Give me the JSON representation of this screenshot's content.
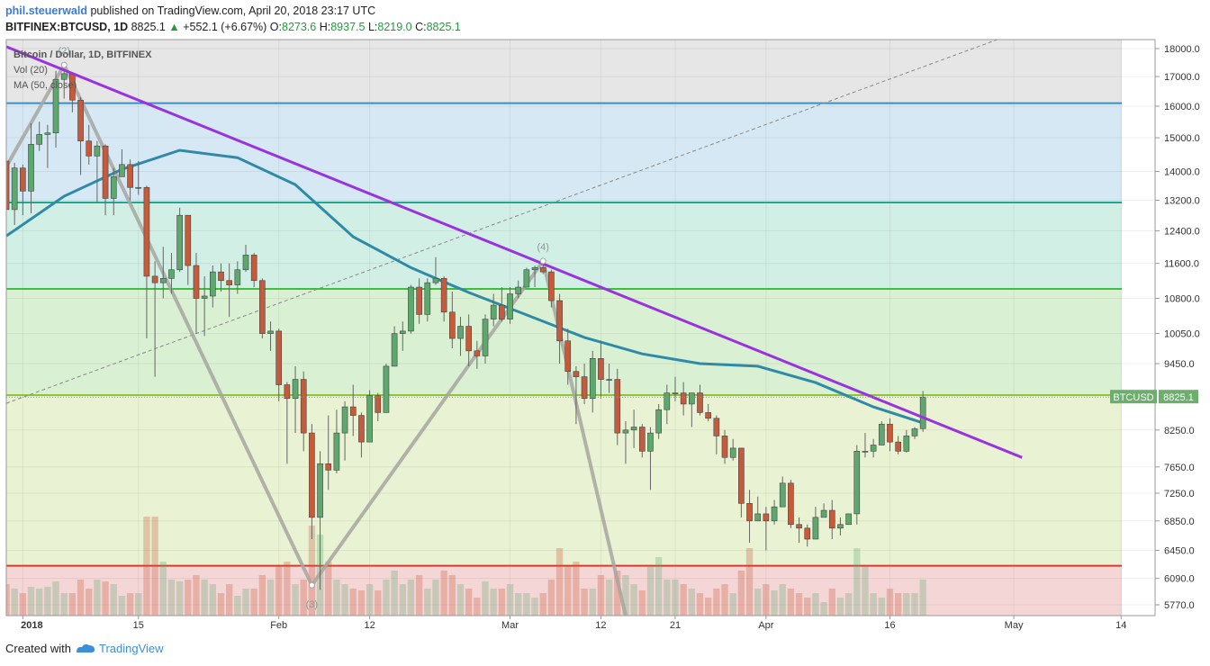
{
  "header": {
    "author": "phil.steuerwald",
    "published": "published on TradingView.com, April 20, 2018 23:17 UTC",
    "symbol": "BITFINEX:BTCUSD, 1D",
    "last": "8825.1",
    "arrow": "▲",
    "change": "+552.1 (+6.67%)",
    "ohlc": [
      {
        "label": "O:",
        "value": "8273.6"
      },
      {
        "label": "H:",
        "value": "8937.5"
      },
      {
        "label": "L:",
        "value": "8219.0"
      },
      {
        "label": "C:",
        "value": "8825.1"
      }
    ]
  },
  "footer": {
    "created": "Created with",
    "brand": "TradingView"
  },
  "chart_data": {
    "type": "candlestick",
    "legend": [
      "Bitcoin / Dollar, 1D, BITFINEX",
      "Vol (20)",
      "MA (50, close)"
    ],
    "log_scale": true,
    "up_color": "#5ea870",
    "down_color": "#c65b3c",
    "ylim": [
      5644,
      18335
    ],
    "xlim": [
      "2017-12-30",
      "2018-05-18"
    ],
    "yticks": [
      {
        "value": 18000,
        "label": "18000.0"
      },
      {
        "value": 17000,
        "label": "17000.0"
      },
      {
        "value": 16000,
        "label": "16000.0"
      },
      {
        "value": 15000,
        "label": "15000.0"
      },
      {
        "value": 14000,
        "label": "14000.0"
      },
      {
        "value": 13200,
        "label": "13200.0"
      },
      {
        "value": 12400,
        "label": "12400.0"
      },
      {
        "value": 11600,
        "label": "11600.0"
      },
      {
        "value": 10800,
        "label": "10800.0"
      },
      {
        "value": 10050,
        "label": "10050.0"
      },
      {
        "value": 9450,
        "label": "9450.0"
      },
      {
        "value": 8250,
        "label": "8250.0"
      },
      {
        "value": 7650,
        "label": "7650.0"
      },
      {
        "value": 7250,
        "label": "7250.0"
      },
      {
        "value": 6850,
        "label": "6850.0"
      },
      {
        "value": 6450,
        "label": "6450.0"
      },
      {
        "value": 6090,
        "label": "6090.0"
      },
      {
        "value": 5770,
        "label": "5770.0"
      }
    ],
    "xticks": [
      {
        "value": "2018-01-01",
        "label": "2018"
      },
      {
        "value": "2018-01-15",
        "label": "15"
      },
      {
        "value": "2018-02-01",
        "label": "Feb"
      },
      {
        "value": "2018-02-12",
        "label": "12"
      },
      {
        "value": "2018-03-01",
        "label": "Mar"
      },
      {
        "value": "2018-03-12",
        "label": "12"
      },
      {
        "value": "2018-03-21",
        "label": "21"
      },
      {
        "value": "2018-04-01",
        "label": "Apr"
      },
      {
        "value": "2018-04-16",
        "label": "16"
      },
      {
        "value": "2018-05-01",
        "label": "May"
      },
      {
        "value": "2018-05-14",
        "label": "14"
      }
    ],
    "levels": [
      {
        "value": 16100,
        "color": "#3a8fc4"
      },
      {
        "value": 13140,
        "color": "#22a88e"
      },
      {
        "value": 11010,
        "color": "#3cbf3c"
      },
      {
        "value": 8860,
        "color": "#8fc43a"
      },
      {
        "value": 6250,
        "color": "#d93a2e"
      }
    ],
    "band_colors": [
      "#e6e6e6",
      "#d5e8f3",
      "#d2efe6",
      "#d9f0d3",
      "#e9f2d2",
      "#f5d6d6"
    ],
    "price_tag": {
      "symbol": "BTCUSD",
      "value": 8825.1,
      "label": "8825.1",
      "color": "#6cae6c"
    },
    "x": [
      "2017-12-30",
      "2017-12-31",
      "2018-01-01",
      "2018-01-02",
      "2018-01-03",
      "2018-01-04",
      "2018-01-05",
      "2018-01-06",
      "2018-01-07",
      "2018-01-08",
      "2018-01-09",
      "2018-01-10",
      "2018-01-11",
      "2018-01-12",
      "2018-01-13",
      "2018-01-14",
      "2018-01-15",
      "2018-01-16",
      "2018-01-17",
      "2018-01-18",
      "2018-01-19",
      "2018-01-20",
      "2018-01-21",
      "2018-01-22",
      "2018-01-23",
      "2018-01-24",
      "2018-01-25",
      "2018-01-26",
      "2018-01-27",
      "2018-01-28",
      "2018-01-29",
      "2018-01-30",
      "2018-01-31",
      "2018-02-01",
      "2018-02-02",
      "2018-02-03",
      "2018-02-04",
      "2018-02-05",
      "2018-02-06",
      "2018-02-07",
      "2018-02-08",
      "2018-02-09",
      "2018-02-10",
      "2018-02-11",
      "2018-02-12",
      "2018-02-13",
      "2018-02-14",
      "2018-02-15",
      "2018-02-16",
      "2018-02-17",
      "2018-02-18",
      "2018-02-19",
      "2018-02-20",
      "2018-02-21",
      "2018-02-22",
      "2018-02-23",
      "2018-02-24",
      "2018-02-25",
      "2018-02-26",
      "2018-02-27",
      "2018-02-28",
      "2018-03-01",
      "2018-03-02",
      "2018-03-03",
      "2018-03-04",
      "2018-03-05",
      "2018-03-06",
      "2018-03-07",
      "2018-03-08",
      "2018-03-09",
      "2018-03-10",
      "2018-03-11",
      "2018-03-12",
      "2018-03-13",
      "2018-03-14",
      "2018-03-15",
      "2018-03-16",
      "2018-03-17",
      "2018-03-18",
      "2018-03-19",
      "2018-03-20",
      "2018-03-21",
      "2018-03-22",
      "2018-03-23",
      "2018-03-24",
      "2018-03-25",
      "2018-03-26",
      "2018-03-27",
      "2018-03-28",
      "2018-03-29",
      "2018-03-30",
      "2018-03-31",
      "2018-04-01",
      "2018-04-02",
      "2018-04-03",
      "2018-04-04",
      "2018-04-05",
      "2018-04-06",
      "2018-04-07",
      "2018-04-08",
      "2018-04-09",
      "2018-04-10",
      "2018-04-11",
      "2018-04-12",
      "2018-04-13",
      "2018-04-14",
      "2018-04-15",
      "2018-04-16",
      "2018-04-17",
      "2018-04-18",
      "2018-04-19",
      "2018-04-20"
    ],
    "candles": [
      [
        14300,
        14450,
        12200,
        12950
      ],
      [
        12950,
        14250,
        12550,
        14100
      ],
      [
        14100,
        14200,
        12800,
        13450
      ],
      [
        13450,
        15450,
        12850,
        14800
      ],
      [
        14800,
        15500,
        14600,
        15100
      ],
      [
        15100,
        15400,
        14100,
        15150
      ],
      [
        15150,
        17200,
        14700,
        16900
      ],
      [
        16900,
        17250,
        16250,
        17100
      ],
      [
        17100,
        17150,
        15800,
        16200
      ],
      [
        16200,
        16300,
        13900,
        14900
      ],
      [
        14900,
        15400,
        14200,
        14450
      ],
      [
        14450,
        14900,
        13150,
        14750
      ],
      [
        14750,
        14800,
        12800,
        13250
      ],
      [
        13250,
        14100,
        12800,
        13850
      ],
      [
        13850,
        14650,
        13850,
        14200
      ],
      [
        14200,
        14350,
        13200,
        13550
      ],
      [
        13550,
        14300,
        13350,
        13550
      ],
      [
        13550,
        13600,
        9950,
        11300
      ],
      [
        11300,
        11650,
        9200,
        11150
      ],
      [
        11150,
        12000,
        10800,
        11250
      ],
      [
        11250,
        11850,
        10900,
        11450
      ],
      [
        11450,
        13000,
        11400,
        12800
      ],
      [
        12800,
        12800,
        11100,
        11550
      ],
      [
        11550,
        11850,
        10050,
        10800
      ],
      [
        10800,
        11300,
        10000,
        10850
      ],
      [
        10850,
        11550,
        10600,
        11400
      ],
      [
        11400,
        11600,
        10950,
        11200
      ],
      [
        11200,
        11600,
        10400,
        11100
      ],
      [
        11100,
        11650,
        10900,
        11450
      ],
      [
        11450,
        12050,
        11400,
        11800
      ],
      [
        11800,
        11850,
        11050,
        11200
      ],
      [
        11200,
        11250,
        9950,
        10050
      ],
      [
        10050,
        10300,
        9700,
        10100
      ],
      [
        10100,
        10150,
        8750,
        9050
      ],
      [
        9050,
        9100,
        7700,
        8800
      ],
      [
        8800,
        9400,
        8200,
        9150
      ],
      [
        9150,
        9300,
        7900,
        8200
      ],
      [
        8200,
        8350,
        6600,
        6900
      ],
      [
        6900,
        7900,
        5950,
        7700
      ],
      [
        7700,
        8500,
        7300,
        7600
      ],
      [
        7600,
        8600,
        7550,
        8200
      ],
      [
        8200,
        8750,
        7750,
        8650
      ],
      [
        8650,
        9050,
        8150,
        8500
      ],
      [
        8500,
        8550,
        7800,
        8050
      ],
      [
        8050,
        8950,
        8050,
        8850
      ],
      [
        8850,
        8900,
        8400,
        8550
      ],
      [
        8550,
        9450,
        8550,
        9400
      ],
      [
        9400,
        10200,
        9400,
        10050
      ],
      [
        10050,
        10300,
        9700,
        10100
      ],
      [
        10100,
        11100,
        10050,
        11050
      ],
      [
        11050,
        11250,
        10250,
        10450
      ],
      [
        10450,
        11250,
        10300,
        11150
      ],
      [
        11150,
        11750,
        11100,
        11250
      ],
      [
        11250,
        11300,
        10300,
        10500
      ],
      [
        10500,
        10950,
        9750,
        9950
      ],
      [
        9950,
        10400,
        9600,
        10200
      ],
      [
        10200,
        10450,
        9400,
        9700
      ],
      [
        9700,
        9900,
        9350,
        9600
      ],
      [
        9600,
        10450,
        9450,
        10350
      ],
      [
        10350,
        10900,
        10200,
        10650
      ],
      [
        10650,
        11050,
        10300,
        10350
      ],
      [
        10350,
        11050,
        10250,
        10900
      ],
      [
        10900,
        11200,
        10800,
        11050
      ],
      [
        11050,
        11500,
        11050,
        11450
      ],
      [
        11450,
        11550,
        11050,
        11500
      ],
      [
        11500,
        11700,
        11350,
        11400
      ],
      [
        11400,
        11450,
        10600,
        10750
      ],
      [
        10750,
        10900,
        9450,
        9900
      ],
      [
        9900,
        10150,
        9050,
        9300
      ],
      [
        9300,
        9400,
        8350,
        9200
      ],
      [
        9200,
        9450,
        8700,
        8800
      ],
      [
        8800,
        9700,
        8550,
        9550
      ],
      [
        9550,
        9900,
        8800,
        9150
      ],
      [
        9150,
        9450,
        8900,
        9150
      ],
      [
        9150,
        9350,
        8000,
        8200
      ],
      [
        8200,
        8400,
        7700,
        8250
      ],
      [
        8250,
        8600,
        7950,
        8300
      ],
      [
        8300,
        8350,
        7800,
        7900
      ],
      [
        7900,
        8300,
        7300,
        8200
      ],
      [
        8200,
        8700,
        8100,
        8600
      ],
      [
        8600,
        9050,
        8350,
        8900
      ],
      [
        8900,
        9200,
        8750,
        8900
      ],
      [
        8900,
        9100,
        8500,
        8700
      ],
      [
        8700,
        8900,
        8300,
        8900
      ],
      [
        8900,
        9050,
        8500,
        8550
      ],
      [
        8550,
        8700,
        8400,
        8450
      ],
      [
        8450,
        8500,
        7850,
        8150
      ],
      [
        8150,
        8250,
        7700,
        7800
      ],
      [
        7800,
        8100,
        7750,
        7950
      ],
      [
        7950,
        7950,
        6900,
        7100
      ],
      [
        7100,
        7300,
        6550,
        6850
      ],
      [
        6850,
        7200,
        6850,
        6950
      ],
      [
        6950,
        7050,
        6450,
        6850
      ],
      [
        6850,
        7150,
        6800,
        7050
      ],
      [
        7050,
        7500,
        7050,
        7400
      ],
      [
        7400,
        7450,
        6750,
        6800
      ],
      [
        6800,
        6900,
        6550,
        6750
      ],
      [
        6750,
        6800,
        6500,
        6600
      ],
      [
        6600,
        7050,
        6600,
        6900
      ],
      [
        6900,
        7100,
        6900,
        7000
      ],
      [
        7000,
        7150,
        6600,
        6750
      ],
      [
        6750,
        6900,
        6650,
        6800
      ],
      [
        6800,
        6950,
        6800,
        6950
      ],
      [
        6950,
        8000,
        6800,
        7900
      ],
      [
        7900,
        8200,
        7800,
        7900
      ],
      [
        7900,
        8100,
        7800,
        8000
      ],
      [
        8000,
        8400,
        8000,
        8350
      ],
      [
        8350,
        8450,
        7900,
        8050
      ],
      [
        8050,
        8150,
        7850,
        7900
      ],
      [
        7900,
        8250,
        7880,
        8150
      ],
      [
        8150,
        8300,
        8100,
        8270
      ],
      [
        8273.6,
        8937.5,
        8219.0,
        8825.1
      ]
    ],
    "volume": [
      35,
      30,
      25,
      32,
      30,
      32,
      38,
      25,
      25,
      40,
      30,
      40,
      38,
      35,
      22,
      25,
      25,
      110,
      110,
      60,
      40,
      38,
      40,
      45,
      40,
      35,
      25,
      35,
      22,
      30,
      30,
      45,
      40,
      55,
      60,
      35,
      40,
      100,
      90,
      60,
      40,
      35,
      30,
      28,
      35,
      28,
      40,
      50,
      35,
      40,
      45,
      30,
      40,
      50,
      45,
      35,
      30,
      20,
      38,
      30,
      30,
      35,
      25,
      25,
      20,
      25,
      40,
      75,
      55,
      60,
      30,
      30,
      45,
      40,
      50,
      45,
      35,
      28,
      55,
      65,
      40,
      40,
      35,
      30,
      25,
      20,
      30,
      35,
      25,
      50,
      75,
      30,
      35,
      28,
      35,
      30,
      25,
      20,
      25,
      15,
      30,
      20,
      25,
      75,
      55,
      25,
      20,
      30,
      25,
      25,
      25,
      40
    ],
    "ma": {
      "color": "#2f8aa8",
      "x": [
        "2017-12-30",
        "2018-01-06",
        "2018-01-13",
        "2018-01-20",
        "2018-01-27",
        "2018-02-03",
        "2018-02-10",
        "2018-02-17",
        "2018-02-24",
        "2018-03-03",
        "2018-03-10",
        "2018-03-17",
        "2018-03-24",
        "2018-03-31",
        "2018-04-07",
        "2018-04-14",
        "2018-04-20"
      ],
      "values": [
        12270,
        13310,
        14060,
        14620,
        14400,
        13630,
        12250,
        11500,
        10930,
        10440,
        9970,
        9640,
        9450,
        9400,
        9090,
        8650,
        8370
      ]
    },
    "trend_line": {
      "x": [
        "2017-12-30",
        "2018-05-02"
      ],
      "values": [
        18070,
        7800
      ],
      "color": "#9933dd"
    },
    "dashed_line": {
      "x": [
        "2017-12-30",
        "2018-04-29"
      ],
      "values": [
        8713,
        18335
      ],
      "color": "#888888"
    },
    "wave": {
      "x": [
        "2017-12-30",
        "2018-01-06",
        "2018-02-05",
        "2018-03-05",
        "2018-03-15"
      ],
      "values": [
        14140,
        17410,
        6006,
        11656,
        5644
      ],
      "labels": [
        "(2)",
        "(3)",
        "(4)"
      ],
      "color": "#a6a6a0"
    }
  }
}
